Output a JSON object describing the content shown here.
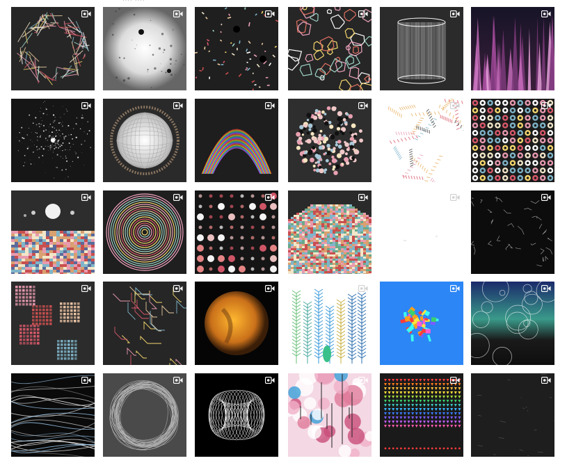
{
  "header_fragment": "···· ····",
  "video_icon": "video-camera-icon",
  "colors": {
    "page_background": "#ffffff",
    "tile_dark": "#222222",
    "tile_blue": "#2c86f5"
  },
  "tiles": [
    {
      "name": "tile-pastel-web-loop",
      "icon": "video-camera-icon"
    },
    {
      "name": "tile-grey-spotlight",
      "icon": "video-camera-icon"
    },
    {
      "name": "tile-confetti-dark",
      "icon": "video-camera-icon"
    },
    {
      "name": "tile-polygon-burst",
      "icon": "video-camera-icon"
    },
    {
      "name": "tile-white-cylinder",
      "icon": "video-camera-icon"
    },
    {
      "name": "tile-purple-spikes",
      "icon": "video-camera-icon"
    },
    {
      "name": "tile-star-cluster",
      "icon": "video-camera-icon"
    },
    {
      "name": "tile-wire-sphere",
      "icon": "video-camera-icon"
    },
    {
      "name": "tile-rainbow-arc",
      "icon": "video-camera-icon"
    },
    {
      "name": "tile-dotted-orb",
      "icon": "video-camera-icon"
    },
    {
      "name": "tile-feather-scribbles",
      "icon": "video-camera-icon"
    },
    {
      "name": "tile-ring-dot-grid",
      "icon": "video-camera-icon"
    },
    {
      "name": "tile-planet-checker-floor",
      "icon": "video-camera-icon"
    },
    {
      "name": "tile-concentric-rings",
      "icon": "video-camera-icon"
    },
    {
      "name": "tile-glowing-dot-grid",
      "icon": "video-camera-icon"
    },
    {
      "name": "tile-mosaic-plane",
      "icon": "video-camera-icon"
    },
    {
      "name": "tile-white-blank",
      "icon": "video-camera-icon"
    },
    {
      "name": "tile-dark-sketch-lines",
      "icon": "video-camera-icon"
    },
    {
      "name": "tile-square-patches",
      "icon": "video-camera-icon"
    },
    {
      "name": "tile-circuit-lines",
      "icon": "video-camera-icon"
    },
    {
      "name": "tile-amber-moon",
      "icon": "video-camera-icon"
    },
    {
      "name": "tile-fern-plants",
      "icon": "video-camera-icon"
    },
    {
      "name": "tile-blue-block-cluster",
      "icon": "video-camera-icon"
    },
    {
      "name": "tile-gradient-bubbles",
      "icon": "video-camera-icon"
    },
    {
      "name": "tile-flowing-strands",
      "icon": "video-camera-icon"
    },
    {
      "name": "tile-wire-ring",
      "icon": "video-camera-icon"
    },
    {
      "name": "tile-wire-torus",
      "icon": "video-camera-icon"
    },
    {
      "name": "tile-blossom-pattern",
      "icon": "video-camera-icon"
    },
    {
      "name": "tile-rainbow-arrows",
      "icon": "video-camera-icon"
    },
    {
      "name": "tile-dark-faint-lines",
      "icon": "video-camera-icon"
    }
  ]
}
